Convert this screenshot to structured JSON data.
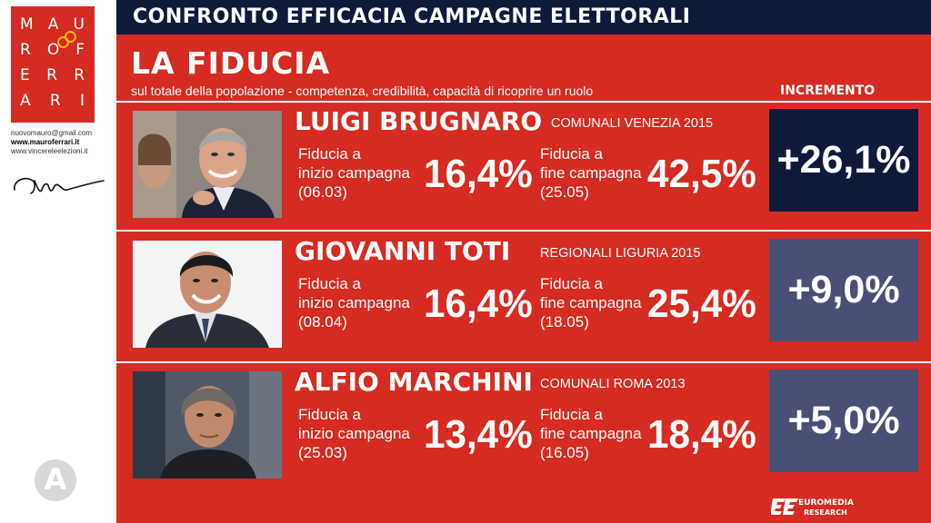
{
  "sidebar": {
    "logo_rows": [
      [
        "M",
        "A",
        "U"
      ],
      [
        "R",
        "O",
        "F"
      ],
      [
        "E",
        "R",
        "R"
      ],
      [
        "A",
        "R",
        "I"
      ]
    ],
    "email": "nuovomauro@gmail.com",
    "website": "www.mauroferrari.it",
    "website2": "www.vincereleelezioni.it",
    "signature_icon": "signature-icon",
    "bottom_logo_letter": "A"
  },
  "header": {
    "title": "CONFRONTO EFFICACIA CAMPAGNE ELETTORALI"
  },
  "section": {
    "title": "LA FIDUCIA",
    "subtitle": "sul totale della popolazione - competenza, credibilità, capacità di ricoprire un ruolo",
    "increment_label": "INCREMENTO"
  },
  "candidates": [
    {
      "name": "LUIGI BRUGNARO",
      "election": "COMUNALI VENEZIA 2015",
      "start_label_1": "Fiducia a",
      "start_label_2": "inizio campagna",
      "start_date": "(06.03)",
      "start_value": "16,4%",
      "end_label_1": "Fiducia a",
      "end_label_2": "fine campagna",
      "end_date": "(25.05)",
      "end_value": "42,5%",
      "increment": "+26,1%",
      "increment_color": "#0f1a3a"
    },
    {
      "name": "GIOVANNI TOTI",
      "election": "REGIONALI LIGURIA 2015",
      "start_label_1": "Fiducia a",
      "start_label_2": "inizio campagna",
      "start_date": "(08.04)",
      "start_value": "16,4%",
      "end_label_1": "Fiducia a",
      "end_label_2": "fine campagna",
      "end_date": "(18.05)",
      "end_value": "25,4%",
      "increment": "+9,0%",
      "increment_color": "#4a4f76"
    },
    {
      "name": "ALFIO MARCHINI",
      "election": "COMUNALI ROMA 2013",
      "start_label_1": "Fiducia a",
      "start_label_2": "inizio campagna",
      "start_date": "(25.03)",
      "start_value": "13,4%",
      "end_label_1": "Fiducia a",
      "end_label_2": "fine campagna",
      "end_date": "(16.05)",
      "end_value": "18,4%",
      "increment": "+5,0%",
      "increment_color": "#4a4f76"
    }
  ],
  "footer": {
    "brand_line1": "EUROMEDIA",
    "brand_line2": "RESEARCH"
  },
  "colors": {
    "background_red": "#d52b22",
    "header_navy": "#0f1a3a",
    "increment_slate": "#4a4f76",
    "logo_ring_gold": "#f3b21b"
  }
}
